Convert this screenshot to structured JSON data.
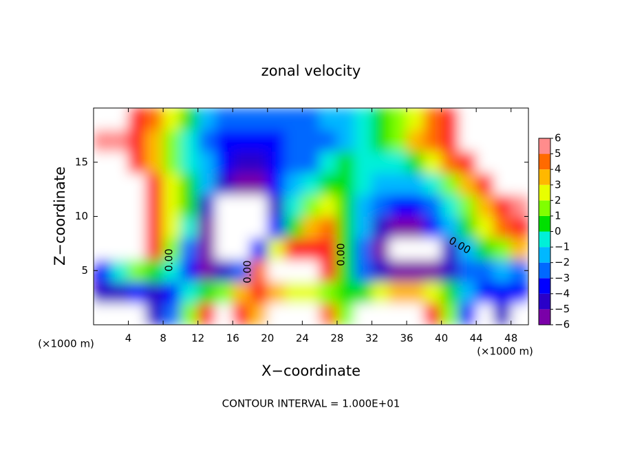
{
  "chart_data": {
    "type": "heatmap",
    "title": "zonal velocity",
    "x_label": "X−coordinate",
    "y_label": "Z−coordinate",
    "x_unit_label": "(×1000 m)",
    "footer": "CONTOUR INTERVAL = 1.000E+01",
    "xlim": [
      0,
      50
    ],
    "ylim": [
      0,
      20
    ],
    "xticks": [
      4,
      8,
      12,
      16,
      20,
      24,
      28,
      32,
      36,
      40,
      44,
      48
    ],
    "yticks": [
      5,
      10,
      15
    ],
    "x": [
      1,
      3,
      5,
      7,
      9,
      11,
      13,
      15,
      17,
      19,
      21,
      23,
      25,
      27,
      29,
      31,
      33,
      35,
      37,
      39,
      41,
      43,
      45,
      47,
      49
    ],
    "y": [
      1,
      3,
      5,
      7,
      9,
      11,
      13,
      15,
      17,
      19
    ],
    "z": [
      [
        -8,
        -8,
        -8,
        -5,
        -3,
        1,
        5,
        8,
        5,
        3,
        8,
        8,
        8,
        4,
        1,
        8,
        8,
        8,
        8,
        5,
        1,
        -4,
        -8,
        -5,
        -8
      ],
      [
        -5,
        -5,
        -4,
        -5,
        -4,
        -1,
        0.5,
        1,
        3,
        5,
        3,
        2,
        2,
        1,
        0,
        0.5,
        2,
        3,
        3,
        2,
        0,
        -2,
        -4,
        -4,
        -4
      ],
      [
        -4,
        -1,
        1,
        0.5,
        -1,
        -4,
        -6,
        -5,
        -3,
        4,
        8,
        8,
        8,
        5,
        0,
        -3,
        -5,
        -6,
        -6,
        -6,
        -5,
        -3,
        -3,
        -2,
        -3
      ],
      [
        8,
        8,
        8,
        5,
        1.5,
        -3,
        -6,
        -8,
        -8,
        -4,
        2,
        5,
        5,
        5,
        0.5,
        -3,
        -6,
        -8,
        -8,
        -8,
        -5,
        -2,
        0,
        1.5,
        3
      ],
      [
        8,
        8,
        8,
        5.5,
        2,
        -1,
        -6,
        -8,
        -8,
        -8,
        -4,
        0,
        3,
        4,
        0.5,
        -2,
        -5,
        -5.5,
        -5.5,
        -4,
        -2,
        0,
        2.5,
        4,
        5
      ],
      [
        8,
        8,
        8,
        5.5,
        2.5,
        0.5,
        -5,
        -8,
        -8,
        -8,
        -5,
        -1,
        1,
        2,
        0.5,
        -1.5,
        -3,
        -4,
        -4,
        -3,
        -1,
        1,
        3.5,
        5,
        6
      ],
      [
        8,
        8,
        8,
        5,
        2,
        0.5,
        -2,
        -4.5,
        -5.5,
        -5.5,
        -4,
        -2,
        -0.5,
        0.5,
        0.5,
        -1,
        -2,
        -2,
        -1.5,
        -0.5,
        1,
        3,
        5,
        8,
        8
      ],
      [
        8,
        8,
        5.5,
        3,
        1.5,
        -0.5,
        -2,
        -3.5,
        -4.5,
        -4.5,
        -4,
        -3,
        -2.5,
        -1,
        0.5,
        -0.5,
        -1,
        -0.5,
        0.5,
        2.5,
        4.5,
        5.5,
        8,
        8,
        8
      ],
      [
        6,
        6,
        5,
        3,
        1.5,
        -0.5,
        -2.5,
        -3.5,
        -4,
        -4,
        -3.5,
        -3,
        -3,
        -2.5,
        -2,
        -1,
        0.5,
        1.5,
        3,
        4.5,
        5.5,
        8,
        8,
        8,
        8
      ],
      [
        8,
        8,
        5.5,
        4,
        2,
        0,
        -2,
        -3,
        -3,
        -3,
        -3,
        -3,
        -3,
        -2,
        -2,
        -1,
        0,
        1,
        2,
        4,
        5,
        8,
        8,
        8,
        8
      ]
    ],
    "colorbar": {
      "ticks": [
        {
          "value": -6,
          "label": "−6"
        },
        {
          "value": -5,
          "label": "−5"
        },
        {
          "value": -4,
          "label": "−4"
        },
        {
          "value": -3,
          "label": "−3"
        },
        {
          "value": -2,
          "label": "−2"
        },
        {
          "value": -1,
          "label": "−1"
        },
        0,
        1,
        2,
        3,
        4,
        5,
        6
      ],
      "colors": [
        "#7a00a8",
        "#2a00c8",
        "#0000ff",
        "#0068ff",
        "#00b8ff",
        "#00f0d8",
        "#00e000",
        "#80ff00",
        "#e8ff00",
        "#ffb800",
        "#ff6a00",
        "#ff1a1a",
        "#ff8c8c"
      ]
    },
    "contour_labels": [
      "0.00",
      "0.00",
      "0.00",
      "0.00"
    ]
  }
}
